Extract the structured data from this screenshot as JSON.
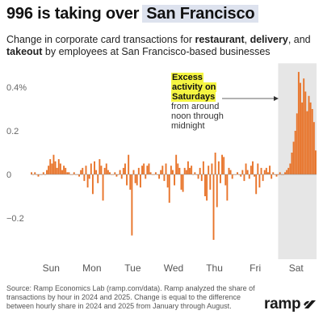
{
  "header": {
    "title_prefix": "996 is taking over",
    "title_highlight": "San Francisco",
    "subtitle_a": "Change in corporate card transactions for ",
    "subtitle_bold_a": "restaurant",
    "subtitle_b": ", ",
    "subtitle_bold_b": "delivery",
    "subtitle_c": ", and ",
    "subtitle_bold_c": "takeout",
    "subtitle_d": " by employees at San Francisco-based businesses"
  },
  "annotation": {
    "highlight_lines": [
      "Excess",
      "activity on",
      "Saturdays"
    ],
    "rest_lines": [
      "from around",
      "noon through",
      "midnight"
    ]
  },
  "footer": {
    "source": "Source: Ramp Economics Lab (ramp.com/data). Ramp analyzed the share of transactions by hour in 2024 and 2025. Change is equal to the difference between hourly share in 2024 and 2025 from January through August.",
    "brand": "ramp"
  },
  "colors": {
    "bar": "#e8742a",
    "highlight_band": "#e6e6e6",
    "title_highlight": "#dde2ee",
    "annotation_highlight": "#f5f542",
    "zero_line": "#888888"
  },
  "chart_data": {
    "type": "bar",
    "x_unit": "hour of week",
    "days": [
      "Sun",
      "Mon",
      "Tue",
      "Wed",
      "Thu",
      "Fri",
      "Sat"
    ],
    "y_ticks": [
      {
        "value": 0.4,
        "label": "0.4%"
      },
      {
        "value": 0.2,
        "label": "0.2"
      },
      {
        "value": 0,
        "label": "0"
      },
      {
        "value": -0.2,
        "label": "−0.2"
      }
    ],
    "ylim": [
      -0.3,
      0.48
    ],
    "grid": false,
    "shaded_day": "Sat",
    "values": [
      0.01,
      0.0,
      0.01,
      0.0,
      -0.01,
      0.0,
      0.0,
      0.01,
      0.0,
      0.02,
      0.04,
      0.07,
      0.05,
      0.09,
      0.06,
      0.03,
      0.07,
      0.05,
      0.02,
      0.04,
      0.03,
      0.01,
      0.01,
      0.0,
      0.0,
      0.01,
      0.0,
      0.0,
      -0.01,
      0.02,
      0.03,
      -0.03,
      0.04,
      -0.06,
      -0.02,
      0.05,
      -0.09,
      0.06,
      0.02,
      -0.04,
      0.07,
      0.04,
      -0.12,
      0.03,
      0.05,
      0.02,
      0.01,
      0.0,
      0.0,
      0.01,
      -0.01,
      0.0,
      0.02,
      -0.02,
      0.03,
      0.05,
      -0.05,
      0.09,
      -0.07,
      -0.28,
      0.02,
      -0.04,
      -0.05,
      0.03,
      -0.06,
      0.04,
      0.05,
      -0.02,
      0.04,
      0.05,
      0.01,
      0.0,
      0.0,
      0.01,
      0.0,
      -0.02,
      0.02,
      0.04,
      -0.03,
      0.05,
      -0.06,
      -0.13,
      0.04,
      0.02,
      -0.05,
      0.09,
      0.05,
      0.03,
      -0.07,
      -0.08,
      0.03,
      0.02,
      0.06,
      0.03,
      0.04,
      0.0,
      0.01,
      0.0,
      -0.02,
      0.03,
      -0.03,
      0.06,
      -0.1,
      -0.12,
      0.04,
      -0.07,
      0.05,
      -0.3,
      0.1,
      -0.15,
      0.06,
      -0.04,
      0.09,
      0.08,
      -0.05,
      -0.12,
      0.03,
      0.02,
      -0.02,
      0.0,
      0.0,
      0.01,
      0.0,
      -0.01,
      0.02,
      -0.03,
      0.05,
      0.02,
      -0.02,
      0.04,
      0.06,
      -0.01,
      -0.09,
      0.05,
      -0.06,
      0.03,
      -0.03,
      0.02,
      0.03,
      0.01,
      0.04,
      -0.02,
      0.01,
      0.0,
      -0.01,
      0.0,
      0.01,
      0.0,
      0.0,
      0.01,
      0.02,
      0.03,
      0.05,
      0.1,
      0.15,
      0.2,
      0.28,
      0.47,
      0.42,
      0.33,
      0.44,
      0.38,
      0.29,
      0.36,
      0.33,
      0.3,
      0.24,
      0.11
    ]
  }
}
